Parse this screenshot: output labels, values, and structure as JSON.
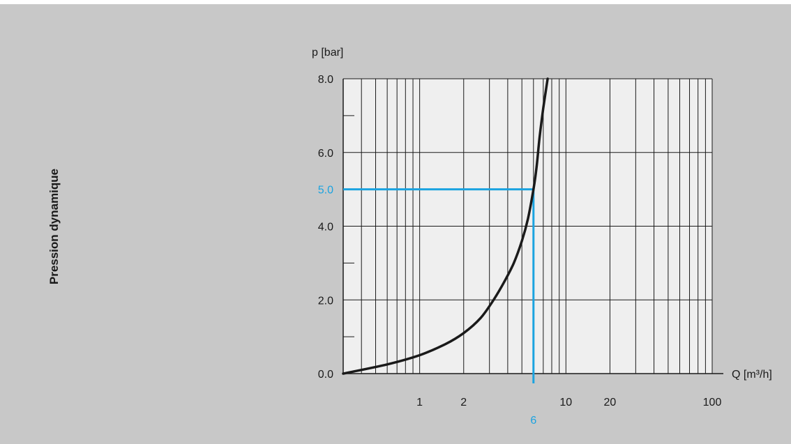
{
  "side_label": "Pression dynamique",
  "colors": {
    "background": "#c8c8c8",
    "plot_background": "#efefef",
    "grid": "#1a1a1a",
    "curve": "#1a1a1a",
    "highlight": "#1ba3e0"
  },
  "chart_data": {
    "type": "line",
    "xlabel": "Q [m³/h]",
    "ylabel": "p [bar]",
    "x_scale": "log",
    "xlim": [
      0.3,
      100
    ],
    "ylim": [
      0,
      8
    ],
    "x_ticks": [
      {
        "value": 1,
        "label": "1"
      },
      {
        "value": 2,
        "label": "2"
      },
      {
        "value": 10,
        "label": "10"
      },
      {
        "value": 20,
        "label": "20"
      },
      {
        "value": 100,
        "label": "100"
      }
    ],
    "y_ticks": [
      {
        "value": 0,
        "label": "0.0"
      },
      {
        "value": 2,
        "label": "2.0"
      },
      {
        "value": 4,
        "label": "4.0"
      },
      {
        "value": 6,
        "label": "6.0"
      },
      {
        "value": 8,
        "label": "8.0"
      }
    ],
    "y_minor_ticks": [
      1,
      3,
      5,
      7
    ],
    "grid": true,
    "series": [
      {
        "x": [
          0.3,
          0.6,
          1.0,
          1.5,
          2.0,
          2.6,
          3.2,
          3.8,
          4.4,
          5.0,
          5.5,
          6.0,
          6.3,
          6.6,
          7.0,
          7.5
        ],
        "y": [
          0.0,
          0.25,
          0.5,
          0.8,
          1.1,
          1.5,
          2.0,
          2.5,
          3.0,
          3.6,
          4.2,
          5.0,
          5.6,
          6.4,
          7.2,
          8.0
        ]
      }
    ],
    "highlight": {
      "x": 6,
      "y": 5.0,
      "x_label": "6",
      "y_label": "5.0"
    }
  }
}
